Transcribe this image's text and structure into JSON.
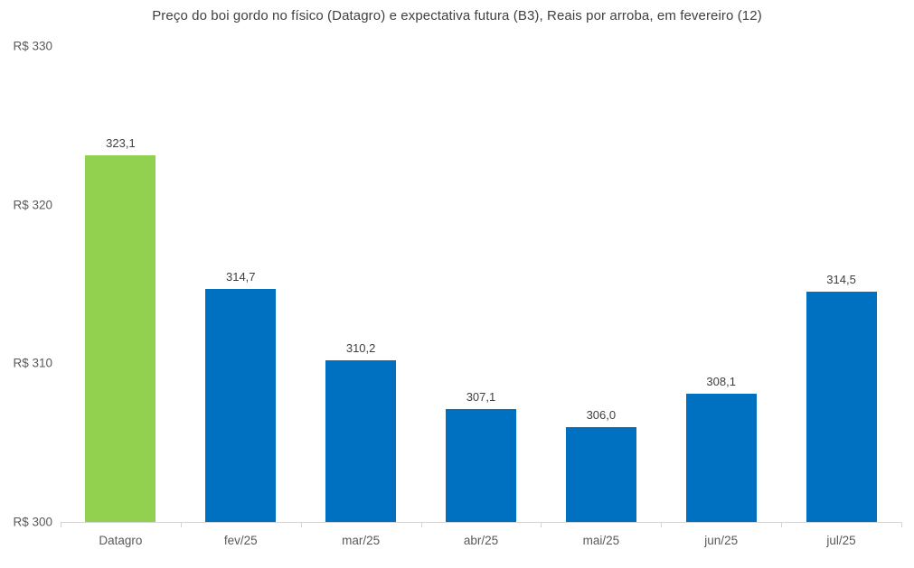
{
  "chart_data": {
    "type": "bar",
    "title": "Preço do boi gordo no físico (Datagro) e expectativa futura (B3), Reais por arroba, em fevereiro (12)",
    "categories": [
      "Datagro",
      "fev/25",
      "mar/25",
      "abr/25",
      "mai/25",
      "jun/25",
      "jul/25"
    ],
    "values": [
      323.1,
      314.7,
      310.2,
      307.1,
      306.0,
      308.1,
      314.5
    ],
    "value_labels": [
      "323,1",
      "314,7",
      "310,2",
      "307,1",
      "306,0",
      "308,1",
      "314,5"
    ],
    "bar_colors": [
      "#92D050",
      "#0070C0",
      "#0070C0",
      "#0070C0",
      "#0070C0",
      "#0070C0",
      "#0070C0"
    ],
    "yticks": [
      {
        "value": 330,
        "label": "R$ 330"
      },
      {
        "value": 320,
        "label": "R$ 320"
      },
      {
        "value": 310,
        "label": "R$ 310"
      },
      {
        "value": 300,
        "label": "R$ 300"
      }
    ],
    "ylim": [
      300,
      330
    ],
    "xlabel": "",
    "ylabel": "",
    "grid": false,
    "legend": "none",
    "colors": {
      "datagro_green": "#92D050",
      "b3_blue": "#0070C0",
      "axis": "#d4d4d4",
      "tick_text": "#595959",
      "data_label_text": "#404040",
      "title_text": "#404040",
      "background": "#ffffff"
    }
  }
}
